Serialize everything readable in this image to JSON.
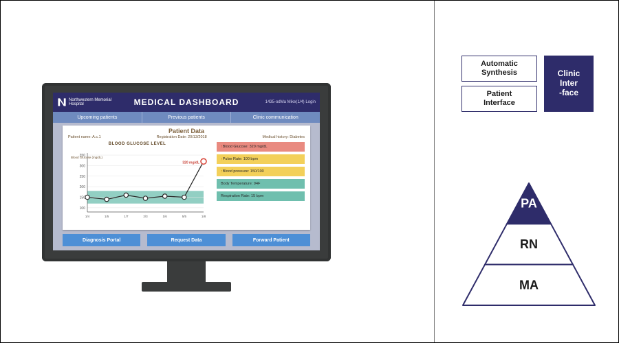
{
  "dashboard": {
    "header": {
      "logo_text": "Northwestern Memorial\nHospital",
      "title": "MEDICAL DASHBOARD",
      "user_line": "1435-odMa Mike(1/4) Login"
    },
    "tabs": [
      "Upcoming patients",
      "Previous patients",
      "Clinic communication"
    ],
    "card": {
      "title": "Patient Data",
      "meta": {
        "left": "Patient name: A.c.1",
        "center": "Registration Date: 20/13/2018",
        "right": "Medical history: Diabetes"
      },
      "chart": {
        "label": "BLOOD GLUCOSE LEVEL",
        "y_axis_label": "Blood Glucose\n(mg/dL)",
        "y_ticks": [
          100,
          150,
          200,
          250,
          300,
          350
        ],
        "ylim": [
          80,
          360
        ],
        "x_ticks": [
          "1/4",
          "1/5",
          "1/7",
          "2/3",
          "1/6",
          "5/5",
          "1/8"
        ],
        "values": [
          150,
          140,
          160,
          145,
          155,
          150,
          320
        ],
        "band_lo": 120,
        "band_hi": 180,
        "band_color": "#7fc7b9",
        "line_color": "#2a2a2a",
        "marker_fill": "#ffffff",
        "marker_stroke": "#2a2a2a",
        "alert_marker_stroke": "#d94a3e",
        "alert_label": "320 mg/dL",
        "alert_label_color": "#c9453a",
        "grid_color": "#e6e6e6",
        "axis_color": "#555555",
        "background_color": "#ffffff"
      },
      "history": [
        {
          "type": "alert",
          "label": "Blood Glucose: 320 mg/dL",
          "bg": "#e98a80",
          "marker": "↑",
          "marker_color": "#b02311"
        },
        {
          "type": "warn",
          "label": "Pulse Rate: 100 bpm",
          "bg": "#f3d05a",
          "marker": "↑",
          "marker_color": "#a37300"
        },
        {
          "type": "warn",
          "label": "Blood pressure: 150/100",
          "bg": "#f3d05a",
          "marker": "↑",
          "marker_color": "#a37300"
        },
        {
          "type": "ok",
          "label": "Body Temperature: 94F",
          "bg": "#6fbfae",
          "marker": "",
          "marker_color": "#0a6e57"
        },
        {
          "type": "ok",
          "label": "Respiration Rate: 15 bpm",
          "bg": "#6fbfae",
          "marker": "",
          "marker_color": "#0a6e57"
        }
      ],
      "actions": [
        "Diagnosis Portal",
        "Request Data",
        "Forward Patient"
      ]
    },
    "colors": {
      "bezel": "#3a3c3c",
      "screen_bg": "#b6bbce",
      "header_bg": "#2e2c6a",
      "tab_bg": "#6f8bbf",
      "button_bg": "#4d8fd6"
    }
  },
  "boxes": {
    "left": [
      "Automatic\nSynthesis",
      "Patient\nInterface"
    ],
    "right": "Clinic\nInter\n-face",
    "border_color": "#2e2c6a",
    "fill_color": "#2e2c6a"
  },
  "pyramid": {
    "levels": [
      {
        "label": "PA",
        "fill": "#2e2c6a",
        "text_color": "#ffffff"
      },
      {
        "label": "RN",
        "fill": "#ffffff",
        "text_color": "#1a1a1a"
      },
      {
        "label": "MA",
        "fill": "#ffffff",
        "text_color": "#1a1a1a"
      }
    ],
    "outline_color": "#2e2c6a",
    "outline_width": 2,
    "font_size": 18
  }
}
